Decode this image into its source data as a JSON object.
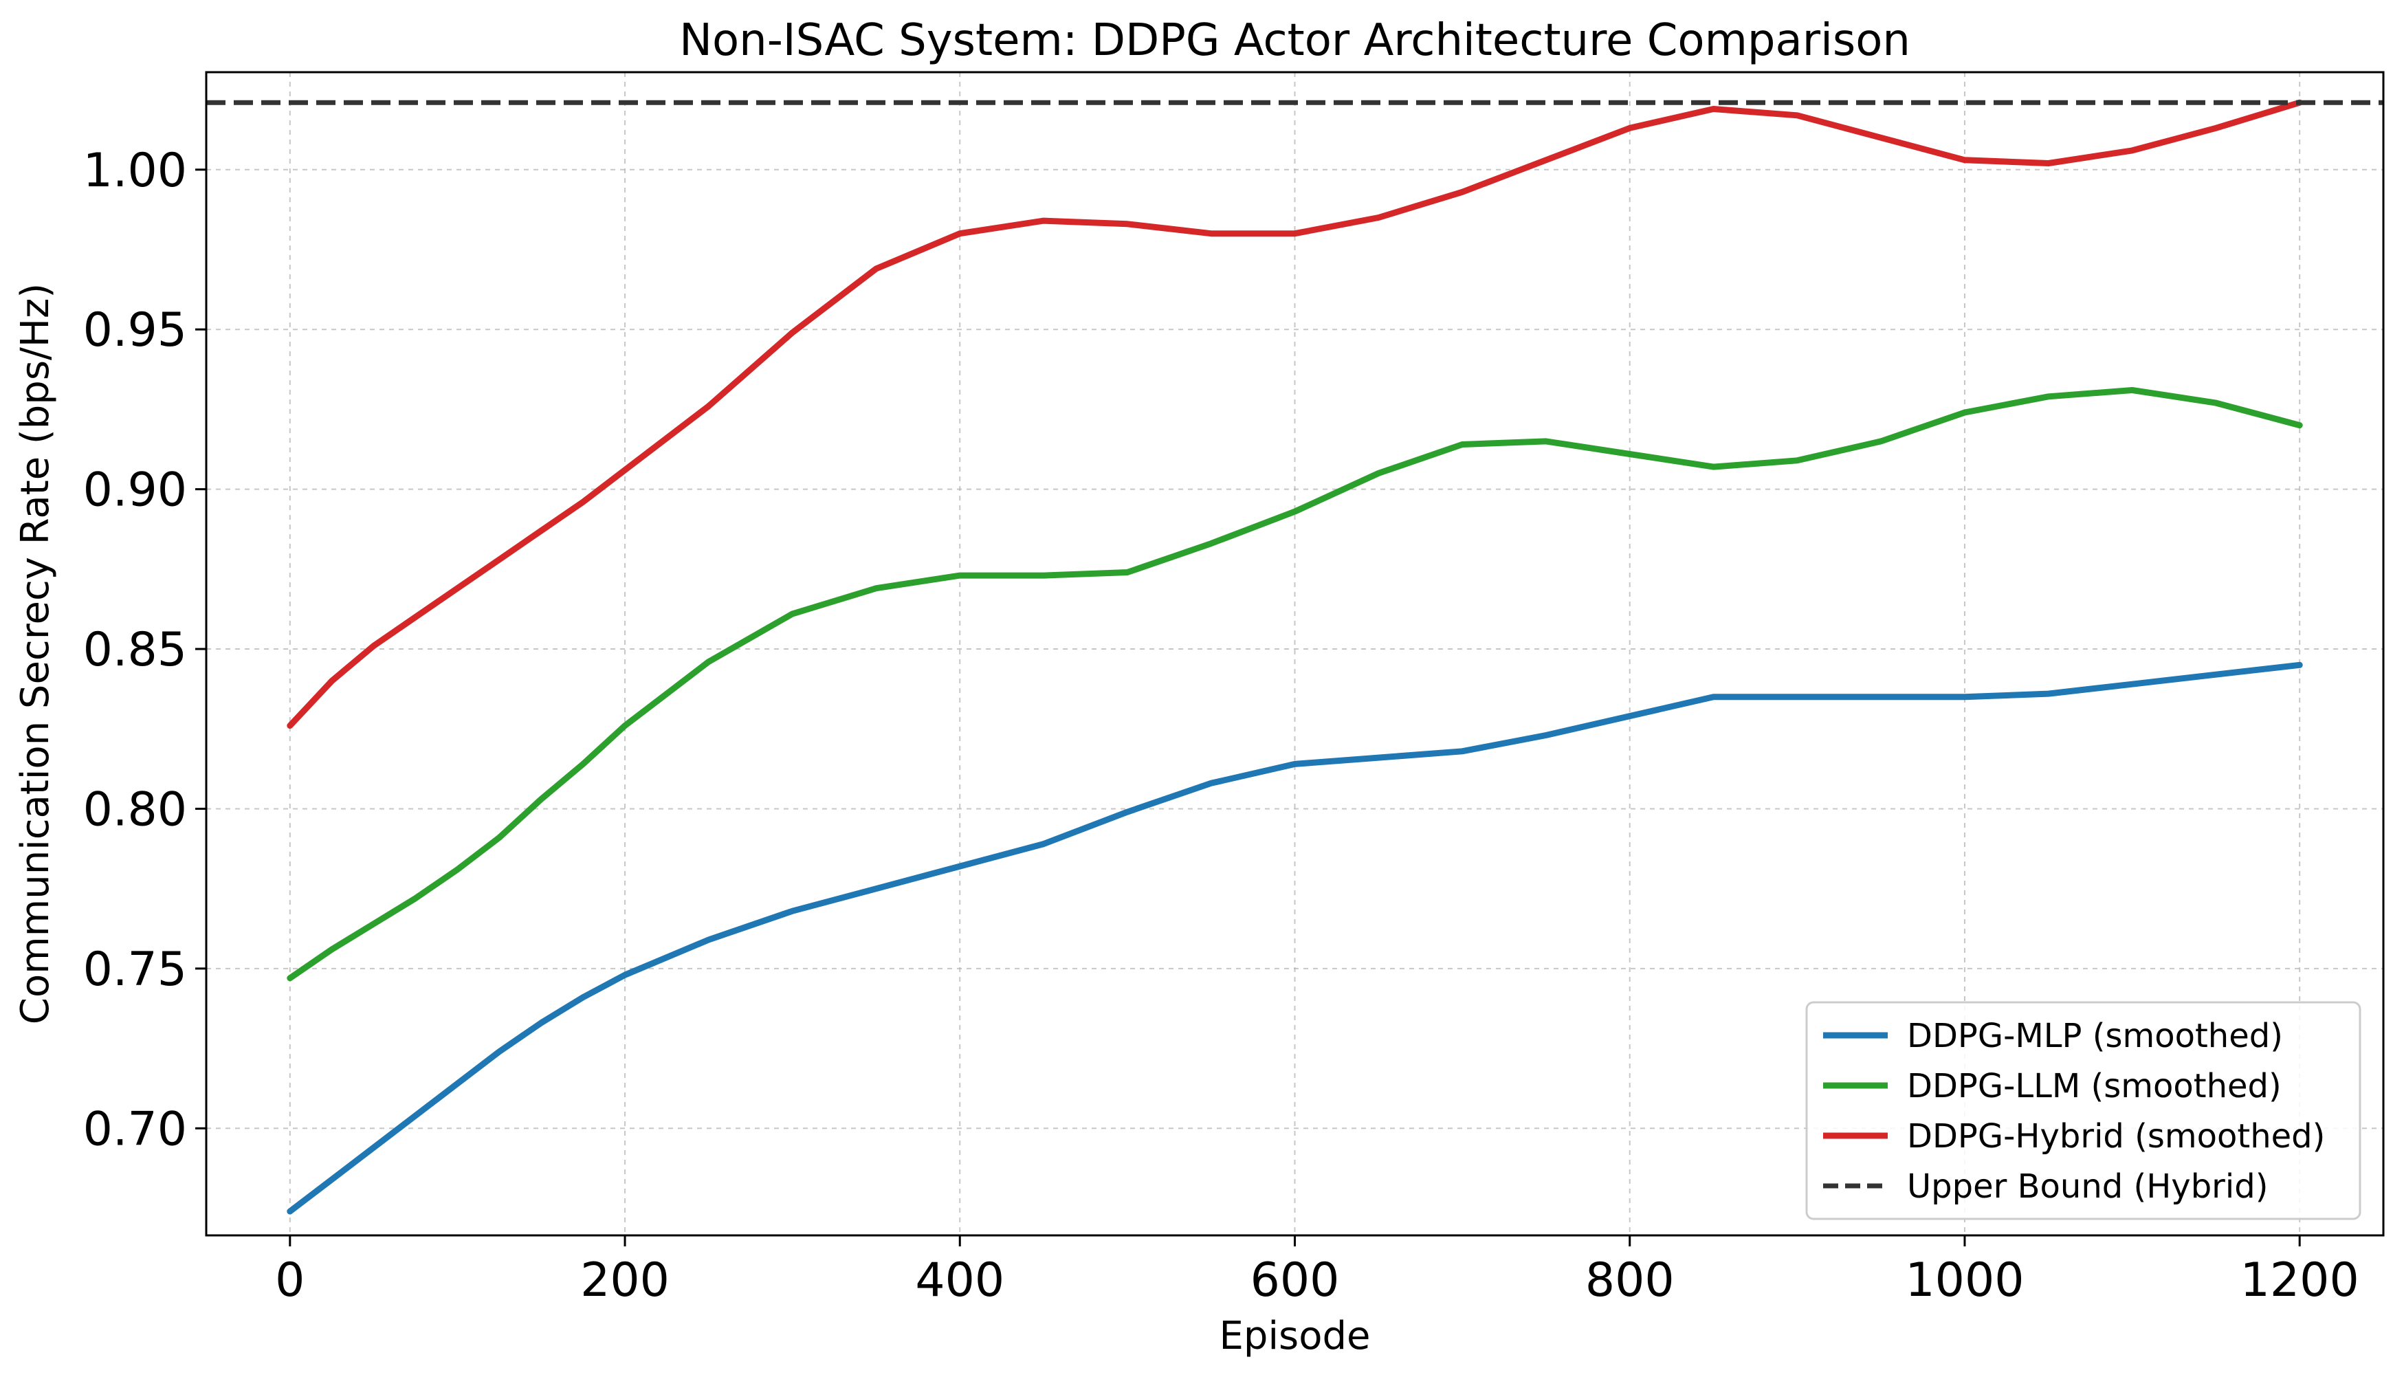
{
  "chart_data": {
    "type": "line",
    "title": "Non-ISAC System: DDPG Actor Architecture Comparison",
    "xlabel": "Episode",
    "ylabel": "Communication Secrecy Rate (bps/Hz)",
    "xlim": [
      -50,
      1250
    ],
    "ylim": [
      0.6665,
      1.0305
    ],
    "xticks": [
      0,
      200,
      400,
      600,
      800,
      1000,
      1200
    ],
    "xtick_labels": [
      "0",
      "200",
      "400",
      "600",
      "800",
      "1000",
      "1200"
    ],
    "yticks": [
      0.7,
      0.75,
      0.8,
      0.85,
      0.9,
      0.95,
      1.0
    ],
    "ytick_labels": [
      "0.70",
      "0.75",
      "0.80",
      "0.85",
      "0.90",
      "0.95",
      "1.00"
    ],
    "grid": true,
    "legend_position": "lower-right",
    "series": [
      {
        "name": "DDPG-MLP (smoothed)",
        "color": "#1f77b4",
        "style": "solid",
        "x": [
          0,
          25,
          50,
          75,
          100,
          125,
          150,
          175,
          200,
          250,
          300,
          350,
          400,
          450,
          500,
          550,
          600,
          650,
          700,
          750,
          800,
          850,
          900,
          950,
          1000,
          1050,
          1100,
          1150,
          1200
        ],
        "values": [
          0.674,
          0.684,
          0.694,
          0.704,
          0.714,
          0.724,
          0.733,
          0.741,
          0.748,
          0.759,
          0.768,
          0.775,
          0.782,
          0.789,
          0.799,
          0.808,
          0.814,
          0.816,
          0.818,
          0.823,
          0.829,
          0.835,
          0.835,
          0.835,
          0.835,
          0.836,
          0.839,
          0.842,
          0.845
        ]
      },
      {
        "name": "DDPG-LLM (smoothed)",
        "color": "#2ca02c",
        "style": "solid",
        "x": [
          0,
          25,
          50,
          75,
          100,
          125,
          150,
          175,
          200,
          250,
          300,
          350,
          400,
          450,
          500,
          550,
          600,
          650,
          700,
          750,
          800,
          850,
          900,
          950,
          1000,
          1050,
          1100,
          1150,
          1200
        ],
        "values": [
          0.747,
          0.756,
          0.764,
          0.772,
          0.781,
          0.791,
          0.803,
          0.814,
          0.826,
          0.846,
          0.861,
          0.869,
          0.873,
          0.873,
          0.874,
          0.883,
          0.893,
          0.905,
          0.914,
          0.915,
          0.911,
          0.907,
          0.909,
          0.915,
          0.924,
          0.929,
          0.931,
          0.927,
          0.92
        ]
      },
      {
        "name": "DDPG-Hybrid (smoothed)",
        "color": "#d62728",
        "style": "solid",
        "x": [
          0,
          25,
          50,
          75,
          100,
          125,
          150,
          175,
          200,
          250,
          300,
          350,
          400,
          450,
          500,
          550,
          600,
          650,
          700,
          750,
          800,
          850,
          900,
          950,
          1000,
          1050,
          1100,
          1150,
          1200
        ],
        "values": [
          0.826,
          0.84,
          0.851,
          0.86,
          0.869,
          0.878,
          0.887,
          0.896,
          0.906,
          0.926,
          0.949,
          0.969,
          0.98,
          0.984,
          0.983,
          0.98,
          0.98,
          0.985,
          0.993,
          1.003,
          1.013,
          1.019,
          1.017,
          1.01,
          1.003,
          1.002,
          1.006,
          1.013,
          1.021
        ]
      },
      {
        "name": "Upper Bound (Hybrid)",
        "color": "#333333",
        "style": "dashed",
        "x": [
          -50,
          1250
        ],
        "values": [
          1.021,
          1.021
        ]
      }
    ]
  }
}
